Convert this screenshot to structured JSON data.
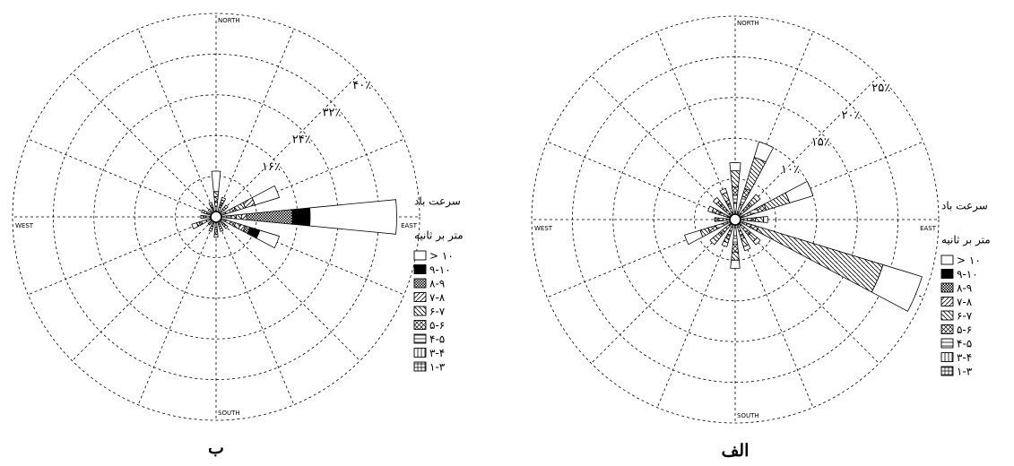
{
  "chart_data": [
    {
      "type": "windrose",
      "title": "ب",
      "categories": [
        "NORTH",
        null,
        null,
        null,
        "EAST",
        null,
        null,
        null,
        "SOUTH",
        null,
        null,
        null,
        "WEST",
        null,
        null,
        null
      ],
      "rlim": [
        0,
        40
      ],
      "rticks": [
        {
          "value": 8,
          "label": null
        },
        {
          "value": 16,
          "label": "۱۶٪"
        },
        {
          "value": 24,
          "label": "۲۴٪"
        },
        {
          "value": 32,
          "label": "۳۲٪"
        },
        {
          "value": 40,
          "label": "۴۰٪"
        }
      ],
      "legend_title": "سرعت باد",
      "legend_unit": "متر بر ثانیه",
      "series": [
        {
          "name": "> ۱۰",
          "pattern": "white",
          "values": [
            4,
            0.5,
            0.5,
            5,
            17,
            4,
            0.5,
            0.5,
            0.5,
            0.5,
            0,
            1,
            0,
            0.5,
            0.5,
            0.5
          ]
        },
        {
          "name": "۹-۱۰",
          "pattern": "black",
          "values": [
            0,
            0,
            0,
            0,
            3.5,
            2,
            0,
            0,
            0,
            0,
            0,
            0,
            0,
            0,
            0,
            0
          ]
        },
        {
          "name": "۸-۹",
          "pattern": "checker",
          "values": [
            0,
            0,
            0,
            0,
            9,
            1,
            0,
            0,
            0,
            0,
            0,
            0,
            0,
            0,
            0,
            0
          ]
        },
        {
          "name": "۷-۸",
          "pattern": "diag-up",
          "values": [
            0,
            0,
            0,
            2,
            1,
            1,
            0,
            0,
            0,
            0,
            0,
            0,
            0,
            0,
            0,
            0
          ]
        },
        {
          "name": "۶-۷",
          "pattern": "diag-down",
          "values": [
            1,
            0.5,
            0.5,
            2,
            1,
            1,
            0.5,
            0.5,
            0.5,
            0.5,
            0,
            0.5,
            0,
            0.5,
            0,
            0.5
          ]
        },
        {
          "name": "۵-۶",
          "pattern": "xhatch",
          "values": [
            1,
            0.5,
            0.5,
            1,
            1,
            1,
            0.5,
            0.5,
            0.5,
            0.5,
            0.5,
            0.5,
            0.5,
            0.5,
            0,
            0.5
          ]
        },
        {
          "name": "۴-۵",
          "pattern": "hlines",
          "values": [
            1,
            0.5,
            0.5,
            1,
            1,
            1,
            0.5,
            0.5,
            0.5,
            0.5,
            0.5,
            1,
            0.5,
            0.5,
            0.5,
            0.5
          ]
        },
        {
          "name": "۳-۴",
          "pattern": "vlines",
          "values": [
            1,
            1,
            0.5,
            1,
            1,
            1,
            0.5,
            0.5,
            1,
            0.5,
            0.5,
            1,
            1,
            0.5,
            0.5,
            0.5
          ]
        },
        {
          "name": "۱-۳",
          "pattern": "grid",
          "values": [
            1,
            1,
            0.5,
            1,
            1,
            1,
            0.5,
            0.5,
            1,
            0.5,
            0.5,
            1,
            1,
            0.5,
            0.5,
            0.5
          ]
        }
      ]
    },
    {
      "type": "windrose",
      "title": "الف",
      "categories": [
        "NORTH",
        null,
        null,
        null,
        "EAST",
        null,
        null,
        null,
        "SOUTH",
        null,
        null,
        null,
        "WEST",
        null,
        null,
        null
      ],
      "rlim": [
        0,
        25
      ],
      "rticks": [
        {
          "value": 5,
          "label": null
        },
        {
          "value": 10,
          "label": "۱۰٪"
        },
        {
          "value": 15,
          "label": "۱۵٪"
        },
        {
          "value": 20,
          "label": "۲۰٪"
        },
        {
          "value": 25,
          "label": "۲۵٪"
        }
      ],
      "legend_title": "سرعت باد",
      "legend_unit": "متر بر ثانیه",
      "series": [
        {
          "name": "> ۱۰",
          "pattern": "white",
          "values": [
            1,
            2,
            0.5,
            3,
            0.5,
            5,
            0.5,
            0.5,
            1,
            0.5,
            0.5,
            2,
            0,
            0.5,
            0.5,
            0.5
          ]
        },
        {
          "name": "۹-۱۰",
          "pattern": "black",
          "values": [
            0,
            0,
            0,
            0,
            0,
            0,
            0,
            0,
            0,
            0,
            0,
            0,
            0,
            0,
            0,
            0
          ]
        },
        {
          "name": "۸-۹",
          "pattern": "checker",
          "values": [
            0,
            0,
            0,
            0,
            0,
            0,
            0,
            0,
            0,
            0,
            0,
            0,
            0,
            0,
            0,
            0
          ]
        },
        {
          "name": "۷-۸",
          "pattern": "diag-up",
          "values": [
            0,
            0,
            0,
            0,
            0,
            0,
            0,
            0,
            0,
            0,
            0,
            0,
            0,
            0,
            0,
            0
          ]
        },
        {
          "name": "۶-۷",
          "pattern": "diag-down",
          "values": [
            2,
            4,
            1,
            3,
            1,
            16,
            1,
            1,
            1,
            0.5,
            1,
            1,
            0,
            0.5,
            0.5,
            1
          ]
        },
        {
          "name": "۵-۶",
          "pattern": "xhatch",
          "values": [
            1,
            1,
            0.5,
            1,
            0.5,
            1,
            0.5,
            0.5,
            1,
            0.5,
            0.5,
            1,
            0.5,
            0.5,
            0.5,
            0.5
          ]
        },
        {
          "name": "۴-۵",
          "pattern": "hlines",
          "values": [
            1,
            1,
            0.5,
            1,
            0.5,
            0.5,
            0.5,
            0.5,
            1,
            0.5,
            0.5,
            1,
            0.5,
            0.5,
            0.5,
            0.5
          ]
        },
        {
          "name": "۳-۴",
          "pattern": "vlines",
          "values": [
            1,
            1,
            0.5,
            1,
            0.5,
            0.5,
            0.5,
            0.5,
            1,
            0.5,
            0.5,
            0.5,
            0.5,
            0.5,
            0.5,
            0.5
          ]
        },
        {
          "name": "۱-۳",
          "pattern": "grid",
          "values": [
            1,
            1,
            1,
            1,
            1,
            1,
            1,
            1,
            1,
            1,
            1,
            1,
            1,
            1,
            1,
            1
          ]
        }
      ]
    }
  ]
}
